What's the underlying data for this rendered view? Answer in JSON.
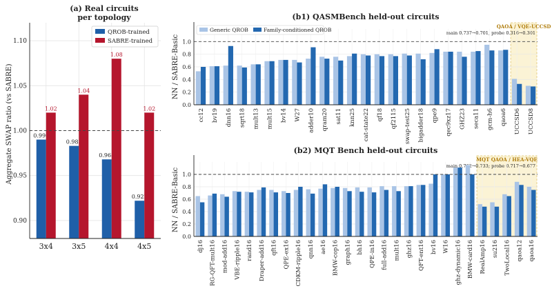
{
  "colors": {
    "qrob": "#1f5fa8",
    "sabre": "#b5162d",
    "generic": "#a9c4e6",
    "family": "#2368b0",
    "highlight_fill": "#fbf3d5",
    "highlight_edge": "#e0c56e",
    "highlight_text": "#b07d0c"
  },
  "chart_data": [
    {
      "type": "bar",
      "title": "(a) Real circuits",
      "subtitle": "per topology",
      "ylabel": "Aggregate SWAP ratio (vs SABRE)",
      "xlabel": "",
      "ylim": [
        0.88,
        1.12
      ],
      "yticks": [
        "0.90",
        "0.95",
        "1.00",
        "1.05",
        "1.10"
      ],
      "reference_line": 1.0,
      "grid": true,
      "legend_position": "top-right",
      "categories": [
        "3x4",
        "3x5",
        "4x4",
        "4x5"
      ],
      "series": [
        {
          "name": "QROB-trained",
          "values": [
            0.99,
            0.983,
            0.968,
            0.922
          ],
          "labels": [
            "0.990",
            "0.983",
            "0.968",
            "0.922"
          ]
        },
        {
          "name": "SABRE-trained",
          "values": [
            1.02,
            1.04,
            1.08,
            1.02
          ],
          "labels": [
            "1.02",
            "1.04",
            "1.08",
            "1.02"
          ]
        }
      ]
    },
    {
      "type": "bar",
      "title": "(b1) QASMBench held-out circuits",
      "ylabel": "NN / SABRE-Basic",
      "xlabel": "",
      "ylim": [
        0.0,
        1.2
      ],
      "yticks": [
        "0.0",
        "0.2",
        "0.4",
        "0.6",
        "0.8",
        "1.0"
      ],
      "reference_line": 1.0,
      "grid": true,
      "legend_position": "top-left",
      "highlight": {
        "from": "UCCSD6",
        "to": "UCCSD8",
        "label": "QAOA / VQE-UCCSD",
        "note": "main 0.737→0.701, probe 0.316→0.301"
      },
      "categories": [
        "cc12",
        "bv19",
        "dnn16",
        "sqrt18",
        "mult13",
        "mult15",
        "bv14",
        "W27",
        "adder10",
        "qram20",
        "sat11",
        "knn25",
        "cat-state22",
        "qf18",
        "qf2115",
        "swap-test25",
        "bigadder18",
        "qpe9",
        "qec9xz17",
        "GHZ23",
        "seca11",
        "gcm-h6",
        "qaoa6",
        "UCCSD6",
        "UCCSD8"
      ],
      "series": [
        {
          "name": "Generic QROB",
          "values": [
            0.53,
            0.61,
            0.62,
            0.62,
            0.64,
            0.69,
            0.71,
            0.71,
            0.73,
            0.76,
            0.76,
            0.77,
            0.8,
            0.8,
            0.8,
            0.81,
            0.81,
            0.82,
            0.84,
            0.84,
            0.84,
            0.95,
            0.86,
            0.41,
            0.3
          ]
        },
        {
          "name": "Family-conditioned QROB",
          "values": [
            0.6,
            0.61,
            0.93,
            0.59,
            0.64,
            0.69,
            0.71,
            0.67,
            0.91,
            0.73,
            0.7,
            0.81,
            0.78,
            0.77,
            0.77,
            0.78,
            0.72,
            0.88,
            0.84,
            0.76,
            0.85,
            0.86,
            0.87,
            0.33,
            0.29
          ]
        }
      ]
    },
    {
      "type": "bar",
      "title": "(b2) MQT Bench held-out circuits",
      "ylabel": "NN / SABRE-Basic",
      "xlabel": "",
      "ylim": [
        0.0,
        1.2
      ],
      "yticks": [
        "0.0",
        "0.2",
        "0.4",
        "0.6",
        "0.8",
        "1.0"
      ],
      "reference_line": 1.0,
      "grid": true,
      "highlight": {
        "from": "RealAmp16",
        "to": "qaoa16",
        "label": "MQT QAOA / HEA-VQE",
        "note": "main 0.762→0.733; probe 0.717→0.677"
      },
      "categories": [
        "dj16",
        "RG-QFT-mult16",
        "mod-add16",
        "VBE-ripple16",
        "rand16",
        "Draper-add16",
        "qft16",
        "QPE-ex16",
        "CDKM-ripple16",
        "qnn16",
        "ae16",
        "BMW-cop16",
        "graph16",
        "bh16",
        "QPE-in16",
        "full-add16",
        "mult16",
        "ghz16",
        "QFT-ent16",
        "bv16",
        "W16",
        "ghz-dynamic16",
        "BMW-card16",
        "RealAmp16",
        "su216",
        "TwoLocal16",
        "qaoa12",
        "qaoa16"
      ],
      "series": [
        {
          "name": "Generic QROB",
          "values": [
            0.65,
            0.66,
            0.68,
            0.73,
            0.72,
            0.75,
            0.75,
            0.73,
            0.75,
            0.76,
            0.77,
            0.78,
            0.78,
            0.79,
            0.79,
            0.81,
            0.81,
            0.81,
            0.83,
            0.85,
            1.0,
            1.11,
            1.15,
            0.52,
            0.55,
            0.68,
            0.88,
            0.8
          ]
        },
        {
          "name": "Family-conditioned QROB",
          "values": [
            0.55,
            0.69,
            0.64,
            0.72,
            0.71,
            0.79,
            0.71,
            0.7,
            0.8,
            0.69,
            0.84,
            0.8,
            0.73,
            0.72,
            0.71,
            0.75,
            0.73,
            0.81,
            0.83,
            1.0,
            1.0,
            1.11,
            1.0,
            0.48,
            0.48,
            0.65,
            0.83,
            0.75
          ]
        }
      ]
    }
  ]
}
